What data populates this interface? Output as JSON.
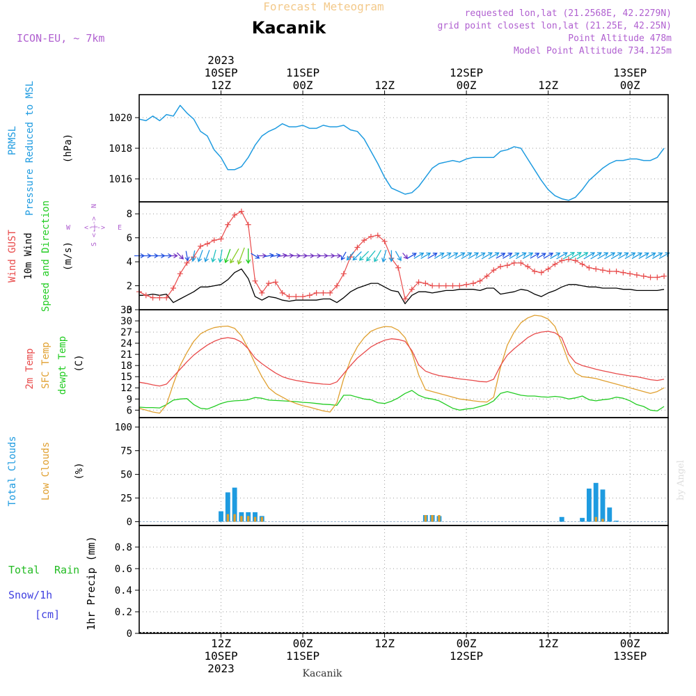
{
  "header": {
    "product": "Forecast Meteogram",
    "station": "Kacanik",
    "model": "ICON-EU,  ~ 7km",
    "requested": "requested lon,lat (21.2568E, 42.2279N)",
    "grid_point": "grid point closest lon,lat (21.25E, 42.25N)",
    "point_altitude": "Point Altitude 478m",
    "model_altitude": "Model Point Altitude 734.125m",
    "footer_station": "Kacanik",
    "credit": "by Angel"
  },
  "time_axis": {
    "top": [
      {
        "h": 12,
        "lines": [
          "2023",
          "10SEP",
          "12Z"
        ]
      },
      {
        "h": 24,
        "lines": [
          "11SEP",
          "00Z"
        ]
      },
      {
        "h": 36,
        "lines": [
          "12Z"
        ]
      },
      {
        "h": 48,
        "lines": [
          "12SEP",
          "00Z"
        ]
      },
      {
        "h": 60,
        "lines": [
          "12Z"
        ]
      },
      {
        "h": 72,
        "lines": [
          "13SEP",
          "00Z"
        ]
      }
    ],
    "bottom": [
      {
        "h": 12,
        "lines": [
          "12Z",
          "10SEP",
          "2023"
        ]
      },
      {
        "h": 24,
        "lines": [
          "00Z",
          "11SEP"
        ]
      },
      {
        "h": 36,
        "lines": [
          "12Z"
        ]
      },
      {
        "h": 48,
        "lines": [
          "00Z",
          "12SEP"
        ]
      },
      {
        "h": 60,
        "lines": [
          "12Z"
        ]
      },
      {
        "h": 72,
        "lines": [
          "00Z",
          "13SEP"
        ]
      }
    ]
  },
  "legend": {
    "p1": {
      "l1": "PRMSL",
      "l2": "Pressure Reduced to MSL",
      "unit": "(hPa)"
    },
    "p2": {
      "gust": "Wind GUST",
      "wind": "10m Wind",
      "dir": "Speed and Direction",
      "unit": "(m/s)",
      "compass_n": "N",
      "compass_s": "S",
      "compass_w": "W",
      "compass_e": "E",
      "compass_arrow": "<-|->"
    },
    "p3": {
      "t2m": "2m Temp",
      "sfc": "SFC Temp",
      "dew": "dewpt Temp",
      "unit": "(C)"
    },
    "p4": {
      "total": "Total Clouds",
      "low": "Low Clouds",
      "unit": "(%)"
    },
    "p5": {
      "total": "Total",
      "rain": "Rain",
      "snow": "Snow/1h",
      "cm": "[cm]",
      "ylabel": "1hr Precip (mm)"
    }
  },
  "colors": {
    "pressure": "#1e9be0",
    "gust": "#e84a4a",
    "wind": "#000000",
    "t2m": "#e84a4a",
    "sfc": "#e0a030",
    "dew": "#22cc22",
    "total_cloud": "#1e9be0",
    "low_cloud": "#e0a030",
    "purple": "#b060d0",
    "snow": "#4040e0",
    "rain": "#22bb22"
  },
  "chart_data": [
    {
      "type": "line",
      "title": "PRMSL",
      "ylabel": "(hPa)",
      "xunit": "hours since 2023-09-10 03Z",
      "ylim": [
        1014.5,
        1021.5
      ],
      "yticks": [
        1016,
        1018,
        1020
      ],
      "x": [
        0,
        1,
        2,
        3,
        4,
        5,
        6,
        7,
        8,
        9,
        10,
        11,
        12,
        13,
        14,
        15,
        16,
        17,
        18,
        19,
        20,
        21,
        22,
        23,
        24,
        25,
        26,
        27,
        28,
        29,
        30,
        31,
        32,
        33,
        34,
        35,
        36,
        37,
        38,
        39,
        40,
        41,
        42,
        43,
        44,
        45,
        46,
        47,
        48,
        49,
        50,
        51,
        52,
        53,
        54,
        55,
        56,
        57,
        58,
        59,
        60,
        61,
        62,
        63,
        64,
        65,
        66,
        67,
        68,
        69,
        70,
        71,
        72,
        73,
        74,
        75,
        76,
        77
      ],
      "series": [
        {
          "name": "PRMSL",
          "values": [
            1019.9,
            1019.8,
            1020.1,
            1019.8,
            1020.2,
            1020.1,
            1020.8,
            1020.3,
            1019.9,
            1019.1,
            1018.8,
            1017.9,
            1017.4,
            1016.6,
            1016.6,
            1016.8,
            1017.4,
            1018.2,
            1018.8,
            1019.1,
            1019.3,
            1019.6,
            1019.4,
            1019.4,
            1019.5,
            1019.3,
            1019.3,
            1019.5,
            1019.4,
            1019.4,
            1019.5,
            1019.2,
            1019.1,
            1018.6,
            1017.8,
            1017.0,
            1016.1,
            1015.4,
            1015.2,
            1015.0,
            1015.1,
            1015.5,
            1016.1,
            1016.7,
            1017.0,
            1017.1,
            1017.2,
            1017.1,
            1017.3,
            1017.4,
            1017.4,
            1017.4,
            1017.4,
            1017.8,
            1017.9,
            1018.1,
            1018.0,
            1017.3,
            1016.6,
            1015.9,
            1015.3,
            1014.9,
            1014.7,
            1014.6,
            1014.8,
            1015.3,
            1015.9,
            1016.3,
            1016.7,
            1017.0,
            1017.2,
            1017.2,
            1017.3,
            1017.3,
            1017.2,
            1017.2,
            1017.4,
            1018.0
          ]
        }
      ]
    },
    {
      "type": "line",
      "title": "Wind",
      "ylabel": "(m/s)",
      "xunit": "hours since 2023-09-10 03Z",
      "ylim": [
        0,
        9
      ],
      "yticks": [
        0,
        2,
        4,
        6,
        8
      ],
      "x": [
        0,
        1,
        2,
        3,
        4,
        5,
        6,
        7,
        8,
        9,
        10,
        11,
        12,
        13,
        14,
        15,
        16,
        17,
        18,
        19,
        20,
        21,
        22,
        23,
        24,
        25,
        26,
        27,
        28,
        29,
        30,
        31,
        32,
        33,
        34,
        35,
        36,
        37,
        38,
        39,
        40,
        41,
        42,
        43,
        44,
        45,
        46,
        47,
        48,
        49,
        50,
        51,
        52,
        53,
        54,
        55,
        56,
        57,
        58,
        59,
        60,
        61,
        62,
        63,
        64,
        65,
        66,
        67,
        68,
        69,
        70,
        71,
        72,
        73,
        74,
        75,
        76,
        77
      ],
      "series": [
        {
          "name": "Wind GUST",
          "values": [
            1.5,
            1.2,
            1.0,
            1.0,
            1.0,
            1.8,
            3.0,
            3.9,
            4.4,
            5.3,
            5.5,
            5.8,
            5.9,
            7.1,
            7.9,
            8.2,
            7.1,
            2.4,
            1.4,
            2.2,
            2.3,
            1.4,
            1.1,
            1.1,
            1.1,
            1.2,
            1.4,
            1.4,
            1.4,
            2.0,
            3.0,
            4.4,
            5.2,
            5.8,
            6.1,
            6.2,
            5.7,
            4.3,
            3.5,
            0.9,
            1.7,
            2.3,
            2.2,
            2.0,
            2.0,
            2.0,
            2.0,
            2.0,
            2.1,
            2.2,
            2.4,
            2.8,
            3.3,
            3.6,
            3.7,
            3.9,
            3.9,
            3.6,
            3.2,
            3.1,
            3.4,
            3.8,
            4.1,
            4.2,
            4.1,
            3.8,
            3.5,
            3.4,
            3.3,
            3.2,
            3.2,
            3.1,
            3.0,
            2.9,
            2.8,
            2.7,
            2.7,
            2.8
          ]
        },
        {
          "name": "10m Wind",
          "values": [
            1.2,
            1.2,
            1.3,
            1.2,
            1.3,
            0.6,
            0.9,
            1.2,
            1.5,
            1.9,
            1.9,
            2.0,
            2.1,
            2.5,
            3.1,
            3.4,
            2.6,
            1.1,
            0.8,
            1.1,
            1.0,
            0.8,
            0.7,
            0.8,
            0.8,
            0.8,
            0.8,
            0.9,
            0.9,
            0.6,
            1.0,
            1.5,
            1.8,
            2.0,
            2.2,
            2.2,
            1.9,
            1.6,
            1.5,
            0.5,
            1.2,
            1.5,
            1.5,
            1.4,
            1.5,
            1.6,
            1.6,
            1.7,
            1.7,
            1.7,
            1.6,
            1.8,
            1.8,
            1.3,
            1.4,
            1.5,
            1.7,
            1.6,
            1.3,
            1.1,
            1.4,
            1.6,
            1.9,
            2.1,
            2.1,
            2.0,
            1.9,
            1.9,
            1.8,
            1.8,
            1.8,
            1.7,
            1.7,
            1.6,
            1.6,
            1.6,
            1.6,
            1.7
          ]
        }
      ]
    },
    {
      "type": "line",
      "title": "Temperature",
      "ylabel": "(C)",
      "xunit": "hours since 2023-09-10 03Z",
      "ylim": [
        4,
        33
      ],
      "yticks": [
        6,
        9,
        12,
        15,
        18,
        21,
        24,
        27,
        30,
        33
      ],
      "x": [
        0,
        1,
        2,
        3,
        4,
        5,
        6,
        7,
        8,
        9,
        10,
        11,
        12,
        13,
        14,
        15,
        16,
        17,
        18,
        19,
        20,
        21,
        22,
        23,
        24,
        25,
        26,
        27,
        28,
        29,
        30,
        31,
        32,
        33,
        34,
        35,
        36,
        37,
        38,
        39,
        40,
        41,
        42,
        43,
        44,
        45,
        46,
        47,
        48,
        49,
        50,
        51,
        52,
        53,
        54,
        55,
        56,
        57,
        58,
        59,
        60,
        61,
        62,
        63,
        64,
        65,
        66,
        67,
        68,
        69,
        70,
        71,
        72,
        73,
        74,
        75,
        76,
        77
      ],
      "series": [
        {
          "name": "2m Temp",
          "values": [
            13.5,
            13.2,
            12.8,
            12.5,
            13.0,
            15.0,
            17.0,
            19.0,
            20.8,
            22.2,
            23.5,
            24.5,
            25.2,
            25.5,
            25.2,
            24.3,
            22.5,
            20.0,
            18.5,
            17.2,
            16.0,
            15.0,
            14.4,
            14.0,
            13.7,
            13.4,
            13.2,
            13.0,
            12.9,
            13.6,
            15.8,
            18.0,
            20.0,
            21.5,
            23.0,
            24.0,
            24.8,
            25.2,
            25.0,
            24.5,
            22.0,
            18.2,
            16.5,
            15.8,
            15.3,
            15.0,
            14.7,
            14.4,
            14.2,
            14.0,
            13.7,
            13.6,
            14.3,
            18.0,
            20.8,
            22.5,
            24.0,
            25.5,
            26.5,
            27.0,
            27.2,
            26.8,
            25.5,
            21.0,
            18.8,
            18.0,
            17.5,
            17.0,
            16.6,
            16.2,
            15.8,
            15.5,
            15.2,
            15.0,
            14.6,
            14.2,
            14.0,
            14.3
          ]
        },
        {
          "name": "SFC Temp",
          "values": [
            6.5,
            6.0,
            5.5,
            5.2,
            7.5,
            13.0,
            18.0,
            21.5,
            24.5,
            26.5,
            27.5,
            28.2,
            28.5,
            28.6,
            28.0,
            26.0,
            22.5,
            18.5,
            15.0,
            12.0,
            10.5,
            9.5,
            8.5,
            7.8,
            7.2,
            6.8,
            6.3,
            5.8,
            5.5,
            8.0,
            14.5,
            19.5,
            23.0,
            25.5,
            27.2,
            28.0,
            28.5,
            28.4,
            27.5,
            25.5,
            21.5,
            15.5,
            11.5,
            11.0,
            10.5,
            10.0,
            9.5,
            9.0,
            8.8,
            8.5,
            8.3,
            8.2,
            9.5,
            17.5,
            23.5,
            27.0,
            29.5,
            30.8,
            31.5,
            31.3,
            30.5,
            28.5,
            24.0,
            19.0,
            16.0,
            15.0,
            14.8,
            14.5,
            14.0,
            13.5,
            13.0,
            12.5,
            12.0,
            11.5,
            11.0,
            10.5,
            11.0,
            12.0
          ]
        },
        {
          "name": "dewpt Temp",
          "values": [
            6.8,
            6.7,
            6.7,
            6.6,
            7.5,
            8.7,
            9.0,
            9.1,
            7.5,
            6.5,
            6.3,
            7.0,
            7.8,
            8.3,
            8.5,
            8.6,
            8.8,
            9.4,
            9.2,
            8.7,
            8.6,
            8.5,
            8.4,
            8.3,
            8.1,
            8.0,
            7.8,
            7.6,
            7.5,
            7.3,
            10.0,
            10.0,
            9.5,
            9.0,
            8.8,
            8.0,
            7.8,
            8.4,
            9.3,
            10.5,
            11.3,
            10.0,
            9.3,
            9.0,
            8.5,
            7.5,
            6.5,
            6.0,
            6.3,
            6.5,
            7.0,
            7.5,
            8.5,
            10.5,
            11.0,
            10.5,
            10.0,
            9.8,
            9.8,
            9.6,
            9.5,
            9.7,
            9.5,
            9.0,
            9.3,
            9.8,
            8.8,
            8.5,
            8.8,
            9.0,
            9.5,
            9.2,
            8.5,
            7.5,
            7.0,
            6.0,
            5.8,
            7.0
          ]
        }
      ]
    },
    {
      "type": "bar",
      "title": "Clouds",
      "ylabel": "(%)",
      "xunit": "hours since 2023-09-10 03Z",
      "ylim": [
        -4,
        110
      ],
      "yticks": [
        0,
        25,
        50,
        75,
        100
      ],
      "series": [
        {
          "name": "Total Clouds",
          "x": [
            12,
            13,
            14,
            15,
            16,
            17,
            18,
            42,
            43,
            44,
            62,
            65,
            66,
            67,
            68,
            69,
            70
          ],
          "values": [
            11,
            31,
            36,
            10,
            10,
            10,
            6,
            7,
            7,
            6,
            5,
            4,
            35,
            41,
            34,
            15,
            1
          ]
        },
        {
          "name": "Low Clouds",
          "x": [
            13,
            14,
            15,
            16,
            17,
            18,
            42,
            43,
            44,
            67,
            68
          ],
          "values": [
            8,
            8,
            6,
            6,
            5,
            5,
            7,
            7,
            7,
            5,
            3
          ]
        }
      ]
    },
    {
      "type": "bar",
      "title": "1hr Precip",
      "ylabel": "1hr Precip (mm)",
      "xunit": "hours since 2023-09-10 03Z",
      "ylim": [
        0,
        1
      ],
      "yticks": [
        0,
        0.2,
        0.4,
        0.6,
        0.8
      ],
      "series": [
        {
          "name": "Total Rain",
          "x": [],
          "values": []
        }
      ]
    }
  ],
  "wind_arrows": {
    "hours": [
      0,
      1,
      2,
      3,
      4,
      5,
      6,
      7,
      8,
      9,
      10,
      11,
      12,
      13,
      14,
      15,
      16,
      17,
      18,
      19,
      20,
      21,
      22,
      23,
      24,
      25,
      26,
      27,
      28,
      29,
      30,
      31,
      32,
      33,
      34,
      35,
      36,
      37,
      38,
      39,
      40,
      41,
      42,
      43,
      44,
      45,
      46,
      47,
      48,
      49,
      50,
      51,
      52,
      53,
      54,
      55,
      56,
      57,
      58,
      59,
      60,
      61,
      62,
      63,
      64,
      65,
      66,
      67,
      68,
      69,
      70,
      71,
      72,
      73,
      74,
      75,
      76,
      77
    ],
    "to_dir_deg": [
      90,
      90,
      90,
      90,
      90,
      90,
      135,
      170,
      190,
      200,
      200,
      195,
      190,
      200,
      210,
      200,
      180,
      120,
      90,
      80,
      80,
      80,
      85,
      90,
      90,
      90,
      90,
      90,
      90,
      90,
      210,
      220,
      225,
      225,
      220,
      210,
      195,
      180,
      150,
      140,
      60,
      60,
      60,
      60,
      60,
      60,
      60,
      60,
      60,
      60,
      60,
      60,
      60,
      60,
      60,
      60,
      60,
      60,
      60,
      60,
      60,
      60,
      60,
      60,
      60,
      60,
      60,
      60,
      60,
      60,
      60,
      60,
      60,
      60,
      60,
      60,
      60,
      60
    ]
  }
}
